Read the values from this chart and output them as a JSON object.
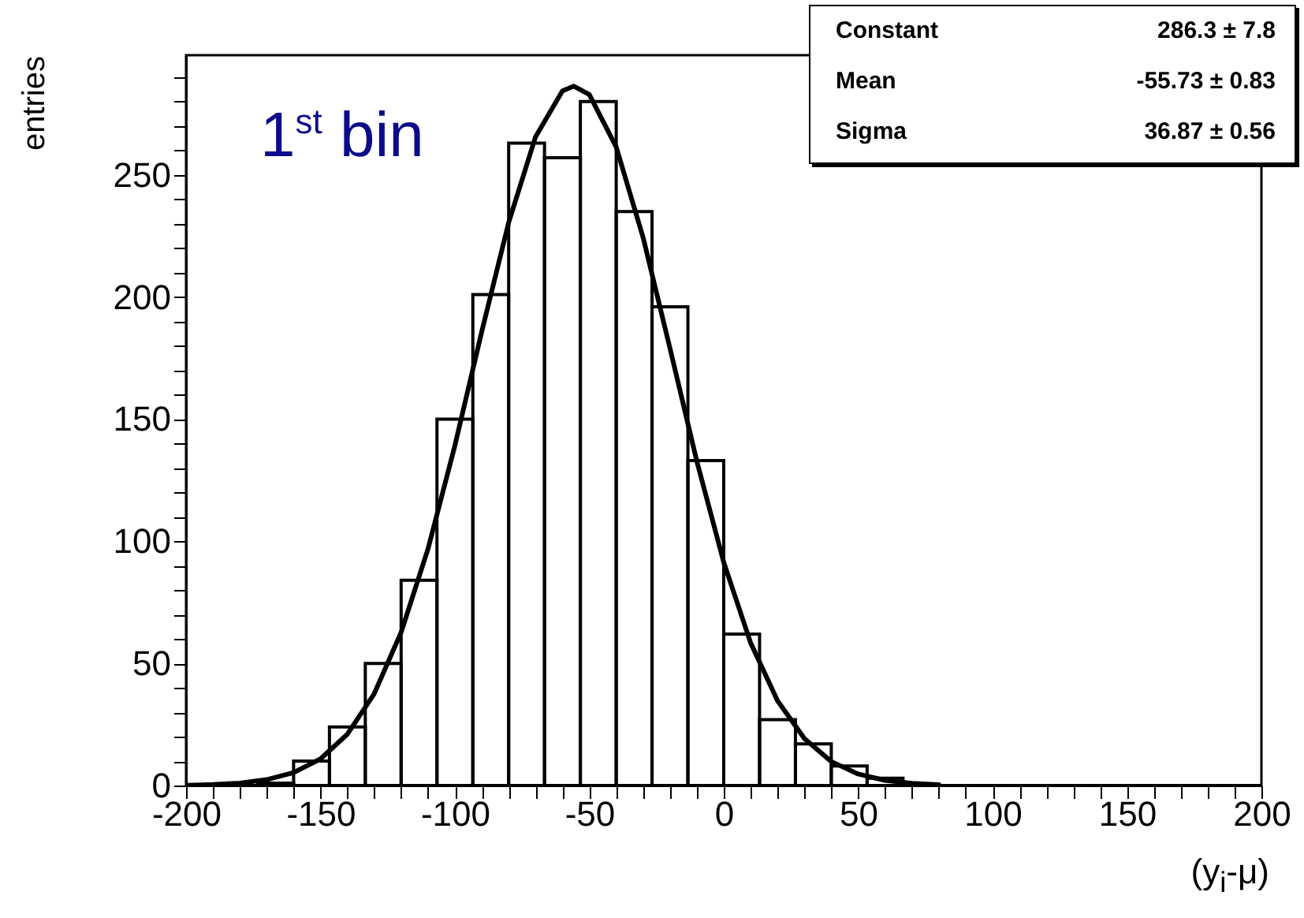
{
  "chart_data": {
    "type": "histogram",
    "title": "1$^{st}$ bin",
    "xlabel": "(y$_{i}$-μ)",
    "ylabel": "entries",
    "bins": [
      -200,
      -186.67,
      -173.33,
      -160,
      -146.67,
      -133.33,
      -120,
      -106.67,
      -93.33,
      -80,
      -66.67,
      -53.33,
      -40,
      -26.67,
      -13.33,
      0,
      13.33,
      26.67,
      40,
      53.33,
      66.67,
      80,
      93.33,
      106.67,
      120,
      133.33,
      146.67,
      160,
      173.33,
      186.67,
      200
    ],
    "values": [
      0,
      0,
      1,
      10,
      24,
      50,
      84,
      150,
      201,
      263,
      257,
      280,
      235,
      196,
      133,
      62,
      27,
      17,
      8,
      3,
      null,
      0,
      0,
      0,
      0,
      0,
      0,
      0,
      0,
      0
    ],
    "color": "#000000",
    "series": [
      {
        "type": "line",
        "color": "#000000",
        "x": [
          -200,
          -190,
          -180,
          -170,
          -160,
          -150,
          -140,
          -130,
          -120,
          -110,
          -100,
          -90,
          -80,
          -70,
          -60,
          -55.73,
          -50,
          -40,
          -30,
          -20,
          -10,
          0,
          10,
          20,
          30,
          40,
          50,
          60,
          70,
          80
        ],
        "values": [
          0.1,
          0.4,
          1,
          2.4,
          5.3,
          10.9,
          21,
          37.6,
          62.7,
          96.9,
          139.2,
          185.9,
          230.5,
          265.6,
          284.4,
          286.3,
          282.9,
          261.4,
          224.4,
          179,
          132.7,
          91.4,
          58.4,
          34.7,
          19.2,
          9.8,
          4.7,
          2.1,
          0.9,
          0.3
        ]
      }
    ],
    "xlim": [
      -200,
      200
    ],
    "ylim": [
      0,
      299
    ],
    "xticks": [
      -200,
      {
        "value": -190,
        "label": null
      },
      {
        "value": -180,
        "label": null
      },
      {
        "value": -170,
        "label": null
      },
      {
        "value": -160,
        "label": null
      },
      -150,
      {
        "value": -140,
        "label": null
      },
      {
        "value": -130,
        "label": null
      },
      {
        "value": -120,
        "label": null
      },
      {
        "value": -110,
        "label": null
      },
      -100,
      {
        "value": -90,
        "label": null
      },
      {
        "value": -80,
        "label": null
      },
      {
        "value": -70,
        "label": null
      },
      {
        "value": -60,
        "label": null
      },
      -50,
      {
        "value": -40,
        "label": null
      },
      {
        "value": -30,
        "label": null
      },
      {
        "value": -20,
        "label": null
      },
      {
        "value": -10,
        "label": null
      },
      0,
      {
        "value": 10,
        "label": null
      },
      {
        "value": 20,
        "label": null
      },
      {
        "value": 30,
        "label": null
      },
      {
        "value": 40,
        "label": null
      },
      50,
      {
        "value": 60,
        "label": null
      },
      {
        "value": 70,
        "label": null
      },
      {
        "value": 80,
        "label": null
      },
      {
        "value": 90,
        "label": null
      },
      100,
      {
        "value": 110,
        "label": null
      },
      {
        "value": 120,
        "label": null
      },
      {
        "value": 130,
        "label": null
      },
      {
        "value": 140,
        "label": null
      },
      150,
      {
        "value": 160,
        "label": null
      },
      {
        "value": 170,
        "label": null
      },
      {
        "value": 180,
        "label": null
      },
      {
        "value": 190,
        "label": null
      },
      200
    ],
    "yticks": [
      0,
      {
        "value": 10,
        "label": null
      },
      {
        "value": 20,
        "label": null
      },
      {
        "value": 30,
        "label": null
      },
      {
        "value": 40,
        "label": null
      },
      50,
      {
        "value": 60,
        "label": null
      },
      {
        "value": 70,
        "label": null
      },
      {
        "value": 80,
        "label": null
      },
      {
        "value": 90,
        "label": null
      },
      100,
      {
        "value": 110,
        "label": null
      },
      {
        "value": 120,
        "label": null
      },
      {
        "value": 130,
        "label": null
      },
      {
        "value": 140,
        "label": null
      },
      150,
      {
        "value": 160,
        "label": null
      },
      {
        "value": 170,
        "label": null
      },
      {
        "value": 180,
        "label": null
      },
      {
        "value": 190,
        "label": null
      },
      200,
      {
        "value": 210,
        "label": null
      },
      {
        "value": 220,
        "label": null
      },
      {
        "value": 230,
        "label": null
      },
      {
        "value": 240,
        "label": null
      },
      250,
      {
        "value": 260,
        "label": null
      },
      {
        "value": 270,
        "label": null
      },
      {
        "value": 280,
        "label": null
      },
      {
        "value": 290,
        "label": null
      }
    ],
    "annotations": [
      "Constant 286.3 ± 7.8",
      "Mean -55.73 ± 0.83",
      "Sigma 36.87 ± 0.56"
    ]
  }
}
